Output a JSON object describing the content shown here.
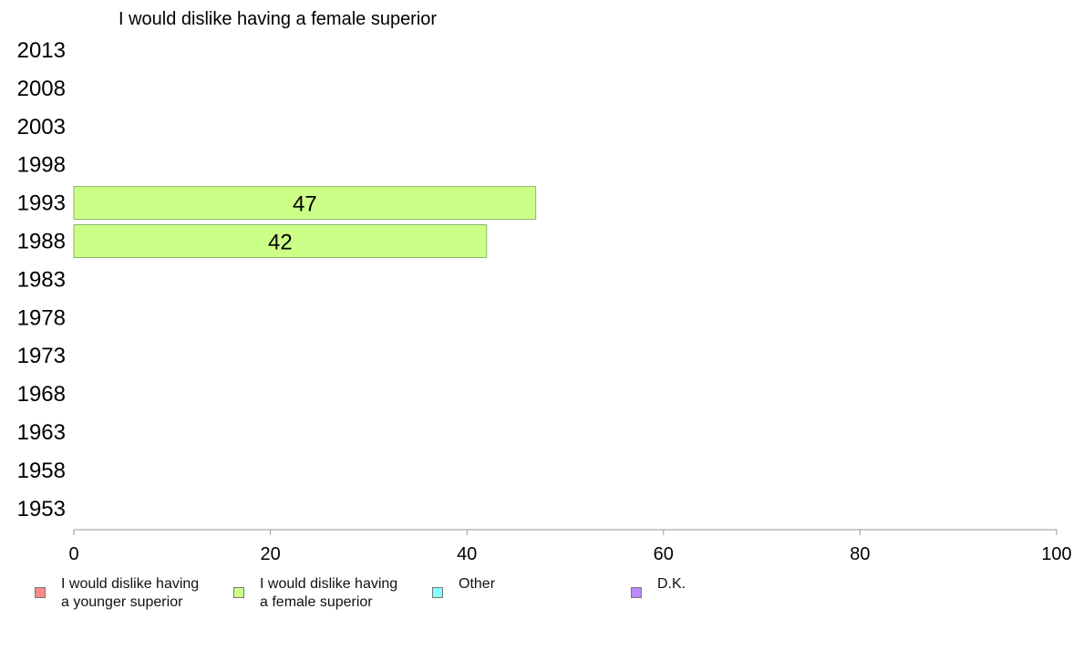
{
  "chart_data": {
    "type": "bar",
    "orientation": "horizontal",
    "title": "I would dislike having a female superior",
    "categories": [
      "2013",
      "2008",
      "2003",
      "1998",
      "1993",
      "1988",
      "1983",
      "1978",
      "1973",
      "1968",
      "1963",
      "1958",
      "1953"
    ],
    "series": [
      {
        "name": "I would dislike having a female superior",
        "color": "#ccff88",
        "values": [
          null,
          null,
          null,
          null,
          47,
          42,
          null,
          null,
          null,
          null,
          null,
          null,
          null
        ]
      }
    ],
    "xlim": [
      0,
      100
    ],
    "xticks": [
      "0",
      "20",
      "40",
      "60",
      "80",
      "100"
    ],
    "grid": false,
    "legend_position": "bottom"
  },
  "legend": [
    {
      "label": "I would dislike having\na younger superior",
      "color": "#ff8888"
    },
    {
      "label": "I would dislike having\na female superior",
      "color": "#ccff88"
    },
    {
      "label": "Other",
      "color": "#88ffff"
    },
    {
      "label": "D.K.",
      "color": "#bb88ff"
    }
  ]
}
